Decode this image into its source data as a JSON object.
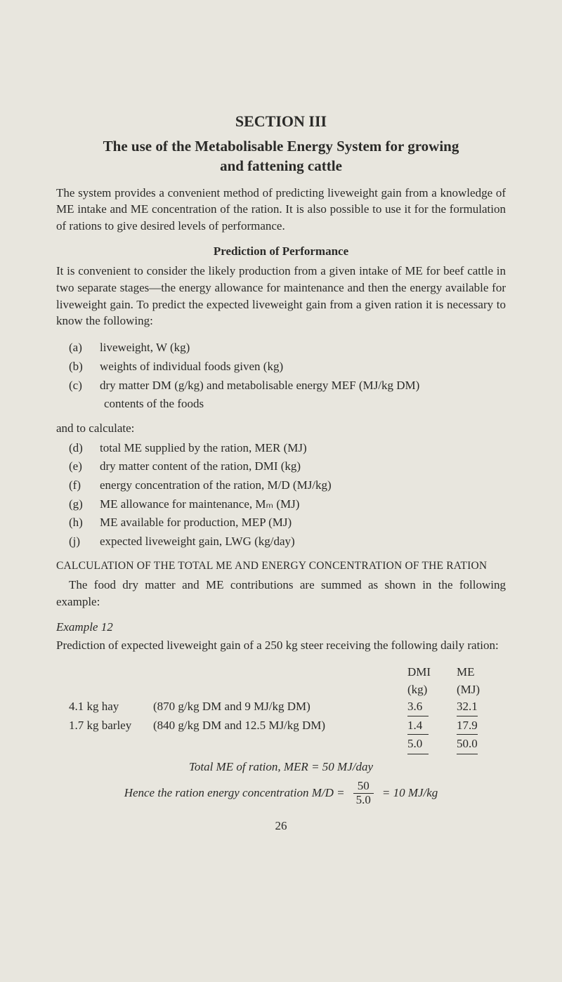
{
  "section_heading": "SECTION III",
  "title_line1": "The use of the Metabolisable Energy System for growing",
  "title_line2": "and fattening cattle",
  "intro_para": "The system provides a convenient method of predicting liveweight gain from a knowledge of ME intake and ME concentration of the ration. It is also possible to use it for the formulation of rations to give desired levels of performance.",
  "sub_prediction": "Prediction of Performance",
  "prediction_para": "It is convenient to consider the likely production from a given intake of ME for beef cattle in two separate stages—the energy allowance for maintenance and then the energy available for liveweight gain. To predict the expected liveweight gain from a given ration it is necessary to know the following:",
  "list1": {
    "a_label": "(a)",
    "a_text": "liveweight, W (kg)",
    "b_label": "(b)",
    "b_text": "weights of individual foods given (kg)",
    "c_label": "(c)",
    "c_text": "dry matter DM (g/kg) and metabolisable energy MEF (MJ/kg DM)",
    "c_cont": "contents of the foods"
  },
  "and_calc": "and to calculate:",
  "list2": {
    "d_label": "(d)",
    "d_text": "total ME supplied by the ration, MER (MJ)",
    "e_label": "(e)",
    "e_text": "dry matter content of the ration, DMI (kg)",
    "f_label": "(f)",
    "f_text": "energy concentration of the ration, M/D (MJ/kg)",
    "g_label": "(g)",
    "g_text": "ME allowance for maintenance, Mₘ (MJ)",
    "h_label": "(h)",
    "h_text": "ME available for production, MEP (MJ)",
    "j_label": "(j)",
    "j_text": "expected liveweight gain, LWG (kg/day)"
  },
  "caps_heading": "CALCULATION OF THE TOTAL ME AND ENERGY CONCENTRATION OF THE RATION",
  "calc_para": "The food dry matter and ME contributions are summed as shown in the following example:",
  "example_label": "Example 12",
  "example_para": "Prediction of expected liveweight gain of a 250 kg steer receiving the following daily ration:",
  "table": {
    "header": {
      "dmi": "DMI",
      "dmi_unit": "(kg)",
      "me": "ME",
      "me_unit": "(MJ)"
    },
    "rows": [
      {
        "name": "4.1 kg hay",
        "desc": "(870 g/kg DM and 9 MJ/kg DM)",
        "dmi": "3.6",
        "me": "32.1"
      },
      {
        "name": "1.7 kg barley",
        "desc": "(840 g/kg DM and 12.5 MJ/kg DM)",
        "dmi": "1.4",
        "me": "17.9"
      }
    ],
    "totals": {
      "dmi": "5.0",
      "me": "50.0"
    }
  },
  "total_line": "Total ME of ration, MER = 50 MJ/day",
  "formula": {
    "lead": "Hence the ration energy concentration M/D =",
    "num": "50",
    "den": "5.0",
    "tail": "= 10 MJ/kg"
  },
  "page_number": "26"
}
